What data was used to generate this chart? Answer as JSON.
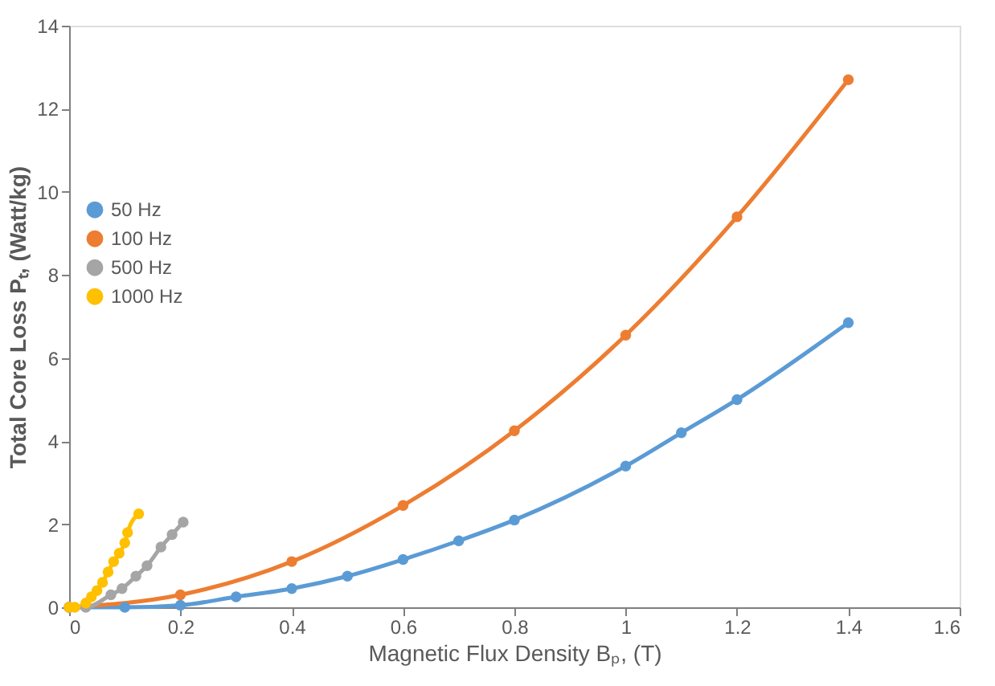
{
  "chart_data": {
    "type": "line",
    "xlabel": "Magnetic Flux Density Bₚ, (T)",
    "ylabel": "Total Core Loss Pₜ, (Watt/kg)",
    "xlim": [
      0,
      1.6
    ],
    "xticks": [
      0,
      0.2,
      0.4,
      0.6,
      0.8,
      1,
      1.2,
      1.4,
      1.6
    ],
    "ylim": [
      0,
      14
    ],
    "yticks": [
      0,
      2,
      4,
      6,
      8,
      10,
      12,
      14
    ],
    "grid": false,
    "legend": "left",
    "marker": "circle",
    "line_style": "solid",
    "series": [
      {
        "name": "50 Hz",
        "color": "#5b9bd5",
        "x": [
          0,
          0.1,
          0.2,
          0.3,
          0.4,
          0.5,
          0.6,
          0.7,
          0.8,
          1.0,
          1.1,
          1.2,
          1.4
        ],
        "values": [
          0,
          0,
          0.05,
          0.25,
          0.45,
          0.75,
          1.15,
          1.6,
          2.1,
          3.4,
          4.2,
          5.0,
          6.85
        ]
      },
      {
        "name": "100 Hz",
        "color": "#ed7d31",
        "x": [
          0,
          0.2,
          0.4,
          0.6,
          0.8,
          1.0,
          1.2,
          1.4
        ],
        "values": [
          0,
          0.3,
          1.1,
          2.45,
          4.25,
          6.55,
          9.4,
          12.7
        ]
      },
      {
        "name": "500 Hz",
        "color": "#a5a5a5",
        "x": [
          0,
          0.03,
          0.075,
          0.095,
          0.12,
          0.14,
          0.165,
          0.185,
          0.205
        ],
        "values": [
          0,
          0,
          0.3,
          0.45,
          0.75,
          1.0,
          1.45,
          1.75,
          2.05
        ]
      },
      {
        "name": "1000 Hz",
        "color": "#ffc000",
        "x": [
          0,
          0.01,
          0.03,
          0.04,
          0.05,
          0.06,
          0.07,
          0.08,
          0.09,
          0.1,
          0.105,
          0.125
        ],
        "values": [
          0,
          0,
          0.1,
          0.25,
          0.4,
          0.6,
          0.85,
          1.1,
          1.3,
          1.55,
          1.8,
          2.25
        ]
      }
    ]
  }
}
